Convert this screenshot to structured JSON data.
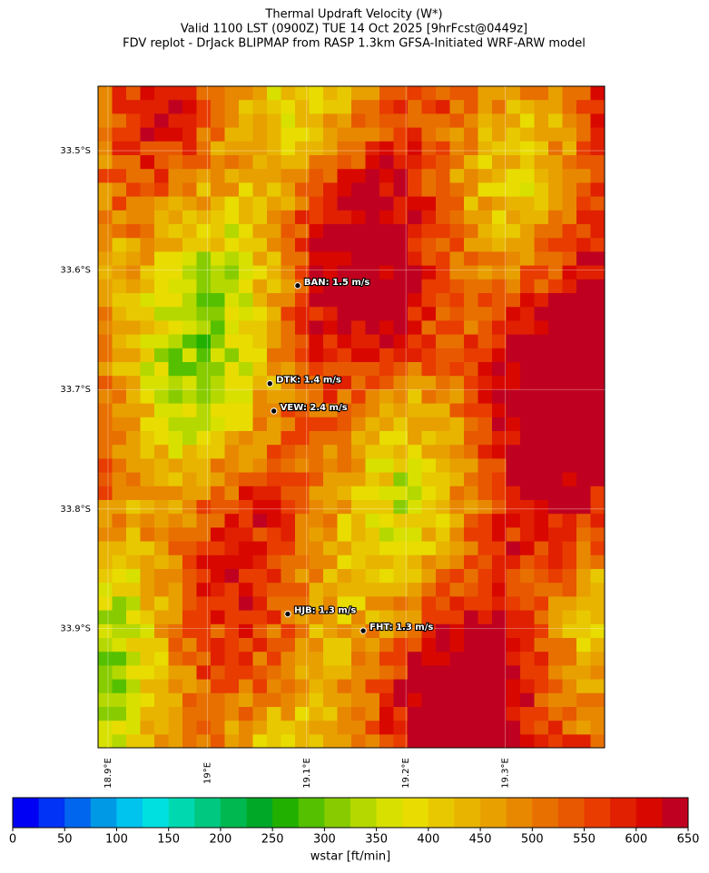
{
  "title": {
    "lines": [
      "Thermal Updraft Velocity (W*)",
      "Valid 1100 LST (0900Z) TUE 14 Oct 2025 [9hrFcst@0449z]",
      "FDV replot - DrJack BLIPMAP from RASP 1.3km GFSA-Initiated WRF-ARW model"
    ]
  },
  "map": {
    "lon_range": [
      18.89,
      19.4
    ],
    "lat_range": [
      -34.0,
      -33.446
    ],
    "lon_ticks": [
      {
        "value": 18.9,
        "label": "18.9°E"
      },
      {
        "value": 19.0,
        "label": "19°E"
      },
      {
        "value": 19.1,
        "label": "19.1°E"
      },
      {
        "value": 19.2,
        "label": "19.2°E"
      },
      {
        "value": 19.3,
        "label": "19.3°E"
      }
    ],
    "lat_ticks": [
      {
        "value": -33.5,
        "label": "33.5°S"
      },
      {
        "value": -33.6,
        "label": "33.6°S"
      },
      {
        "value": -33.7,
        "label": "33.7°S"
      },
      {
        "value": -33.8,
        "label": "33.8°S"
      },
      {
        "value": -33.9,
        "label": "33.9°S"
      }
    ],
    "stations": [
      {
        "label": "BAN: 1.5 m/s",
        "lon": 19.091,
        "lat": -33.613
      },
      {
        "label": "DTK: 1.4 m/s",
        "lon": 19.063,
        "lat": -33.695
      },
      {
        "label": "VEW: 2.4 m/s",
        "lon": 19.067,
        "lat": -33.718
      },
      {
        "label": "HJB: 1.3 m/s",
        "lon": 19.081,
        "lat": -33.888
      },
      {
        "label": "FHT: 1.3 m/s",
        "lon": 19.157,
        "lat": -33.902
      }
    ]
  },
  "colorbar": {
    "label": "wstar [ft/min]",
    "range": [
      0,
      650
    ],
    "ticks": [
      0,
      50,
      100,
      150,
      200,
      250,
      300,
      350,
      400,
      450,
      500,
      550,
      600,
      650
    ],
    "colors": [
      "#0000f5",
      "#0033f5",
      "#0066ee",
      "#0099e6",
      "#00c4ee",
      "#00e0e0",
      "#00d8b0",
      "#00c880",
      "#00b850",
      "#00a828",
      "#22b000",
      "#55c000",
      "#88cc00",
      "#b4d800",
      "#d8e000",
      "#e8dc00",
      "#e8c800",
      "#e8b400",
      "#e8a000",
      "#e88800",
      "#e87000",
      "#e85800",
      "#e83c00",
      "#e02000",
      "#d80800",
      "#c00020"
    ]
  }
}
